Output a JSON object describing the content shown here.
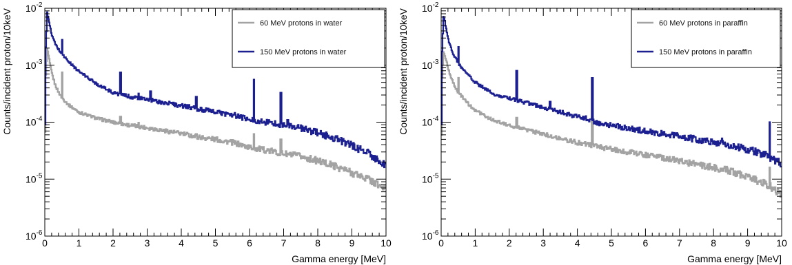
{
  "colors": {
    "low_energy": "#a3a3a3",
    "high_energy": "#1b1f8f",
    "frame": "#000000",
    "legend_border": "#000000"
  },
  "chart_data": [
    {
      "type": "line",
      "xlabel": "Gamma energy [MeV]",
      "ylabel": "Counts/incident proton/10keV",
      "xlim": [
        0,
        10
      ],
      "ylim": [
        1e-06,
        0.01
      ],
      "yscale": "log",
      "grid": false,
      "legend_position": "top-right",
      "x_ticks": [
        "0",
        "1",
        "2",
        "3",
        "4",
        "5",
        "6",
        "7",
        "8",
        "9",
        "10"
      ],
      "y_ticks": [
        {
          "base": "10",
          "exp": "-6",
          "value": 1e-06
        },
        {
          "base": "10",
          "exp": "-5",
          "value": 1e-05
        },
        {
          "base": "10",
          "exp": "-4",
          "value": 0.0001
        },
        {
          "base": "10",
          "exp": "-3",
          "value": 0.001
        },
        {
          "base": "10",
          "exp": "-2",
          "value": 0.01
        }
      ],
      "series": [
        {
          "name": "60 MeV protons in water",
          "color": "#a3a3a3",
          "x": [
            0.0,
            0.03,
            0.07,
            0.1,
            0.15,
            0.2,
            0.3,
            0.4,
            0.5,
            0.7,
            1.0,
            1.5,
            2.0,
            2.5,
            3.0,
            3.5,
            4.0,
            4.5,
            5.0,
            5.5,
            6.0,
            6.5,
            7.0,
            7.5,
            8.0,
            8.5,
            9.0,
            9.5,
            10.0
          ],
          "y": [
            2e-05,
            0.0007,
            0.0019,
            0.0016,
            0.00105,
            0.00075,
            0.00046,
            0.00034,
            0.00027,
            0.0002,
            0.00015,
            0.000118,
            0.0001,
            8.8e-05,
            8e-05,
            7.1e-05,
            6.3e-05,
            5.5e-05,
            5e-05,
            4.4e-05,
            3.6e-05,
            3.2e-05,
            2.8e-05,
            2.5e-05,
            2.1e-05,
            1.7e-05,
            1.3e-05,
            1e-05,
            6.5e-06
          ],
          "peaks": [
            {
              "x": 0.51,
              "y": 0.00075
            },
            {
              "x": 2.22,
              "y": 0.000125
            },
            {
              "x": 2.75,
              "y": 9.8e-05
            },
            {
              "x": 4.44,
              "y": 6.2e-05
            },
            {
              "x": 6.13,
              "y": 6.2e-05
            },
            {
              "x": 6.92,
              "y": 5e-05
            }
          ]
        },
        {
          "name": "150 MeV protons in water",
          "color": "#1b1f8f",
          "x": [
            0.0,
            0.03,
            0.07,
            0.1,
            0.15,
            0.2,
            0.3,
            0.4,
            0.5,
            0.7,
            1.0,
            1.5,
            2.0,
            2.5,
            3.0,
            3.5,
            4.0,
            4.5,
            5.0,
            5.5,
            6.0,
            6.5,
            7.0,
            7.5,
            8.0,
            8.5,
            9.0,
            9.5,
            10.0
          ],
          "y": [
            2e-05,
            0.002,
            0.0082,
            0.0072,
            0.0048,
            0.0035,
            0.0024,
            0.0019,
            0.0016,
            0.00115,
            0.00078,
            0.00048,
            0.00033,
            0.00028,
            0.00025,
            0.00022,
            0.000195,
            0.00017,
            0.00015,
            0.000135,
            0.00011,
            0.0001,
            9e-05,
            7.8e-05,
            6.5e-05,
            5.2e-05,
            3.9e-05,
            2.8e-05,
            1.7e-05
          ],
          "peaks": [
            {
              "x": 0.51,
              "y": 0.0028
            },
            {
              "x": 2.22,
              "y": 0.00075
            },
            {
              "x": 2.75,
              "y": 0.00032
            },
            {
              "x": 3.1,
              "y": 0.00035
            },
            {
              "x": 3.7,
              "y": 0.00022
            },
            {
              "x": 3.85,
              "y": 0.00021
            },
            {
              "x": 4.44,
              "y": 0.00028
            },
            {
              "x": 6.13,
              "y": 0.00056
            },
            {
              "x": 6.92,
              "y": 0.00033
            },
            {
              "x": 7.12,
              "y": 0.00011
            }
          ]
        }
      ]
    },
    {
      "type": "line",
      "xlabel": "Gamma energy [MeV]",
      "ylabel": "Counts/incident proton/10keV",
      "xlim": [
        0,
        10
      ],
      "ylim": [
        1e-06,
        0.01
      ],
      "yscale": "log",
      "grid": false,
      "legend_position": "top-right",
      "x_ticks": [
        "0",
        "1",
        "2",
        "3",
        "4",
        "5",
        "6",
        "7",
        "8",
        "9",
        "10"
      ],
      "y_ticks": [
        {
          "base": "10",
          "exp": "-6",
          "value": 1e-06
        },
        {
          "base": "10",
          "exp": "-5",
          "value": 1e-05
        },
        {
          "base": "10",
          "exp": "-4",
          "value": 0.0001
        },
        {
          "base": "10",
          "exp": "-3",
          "value": 0.001
        },
        {
          "base": "10",
          "exp": "-2",
          "value": 0.01
        }
      ],
      "series": [
        {
          "name": "60 MeV protons in paraffin",
          "color": "#a3a3a3",
          "x": [
            0.0,
            0.03,
            0.07,
            0.1,
            0.15,
            0.2,
            0.3,
            0.4,
            0.5,
            0.7,
            1.0,
            1.5,
            2.0,
            2.5,
            3.0,
            3.5,
            4.0,
            4.3,
            4.5,
            5.0,
            5.5,
            6.0,
            6.5,
            7.0,
            7.5,
            8.0,
            8.5,
            9.0,
            9.5,
            10.0
          ],
          "y": [
            2e-05,
            0.0006,
            0.0017,
            0.0015,
            0.0012,
            0.0009,
            0.00058,
            0.00042,
            0.00034,
            0.00024,
            0.00016,
            0.00011,
            8.8e-05,
            7.3e-05,
            6.2e-05,
            5.2e-05,
            4.4e-05,
            4.1e-05,
            3.8e-05,
            3.4e-05,
            3e-05,
            2.7e-05,
            2.4e-05,
            2.1e-05,
            1.8e-05,
            1.6e-05,
            1.4e-05,
            1.1e-05,
            8.5e-06,
            5.5e-06
          ],
          "peaks": [
            {
              "x": 0.51,
              "y": 0.0006
            },
            {
              "x": 2.22,
              "y": 0.00012
            },
            {
              "x": 3.2,
              "y": 5.5e-05
            },
            {
              "x": 4.44,
              "y": 0.00012
            },
            {
              "x": 9.65,
              "y": 1.6e-05
            }
          ]
        },
        {
          "name": "150 MeV protons in paraffin",
          "color": "#1b1f8f",
          "x": [
            0.0,
            0.03,
            0.07,
            0.1,
            0.15,
            0.2,
            0.3,
            0.4,
            0.5,
            0.7,
            1.0,
            1.5,
            2.0,
            2.5,
            3.0,
            3.5,
            4.0,
            4.3,
            4.5,
            5.0,
            5.5,
            6.0,
            6.5,
            7.0,
            7.5,
            8.0,
            8.5,
            9.0,
            9.5,
            10.0
          ],
          "y": [
            2e-05,
            0.0018,
            0.0072,
            0.0064,
            0.0042,
            0.003,
            0.0019,
            0.0014,
            0.0011,
            0.00078,
            0.0005,
            0.00032,
            0.00026,
            0.00022,
            0.00018,
            0.00015,
            0.000125,
            0.000115,
            0.0001,
            8.8e-05,
            7.8e-05,
            7e-05,
            6.3e-05,
            5.6e-05,
            5e-05,
            4.5e-05,
            4e-05,
            3.3e-05,
            2.7e-05,
            1.9e-05
          ],
          "peaks": [
            {
              "x": 0.51,
              "y": 0.0021
            },
            {
              "x": 2.22,
              "y": 0.0008
            },
            {
              "x": 3.2,
              "y": 0.00023
            },
            {
              "x": 4.44,
              "y": 0.0006
            },
            {
              "x": 8.25,
              "y": 5.2e-05
            },
            {
              "x": 9.65,
              "y": 0.0001
            }
          ]
        }
      ]
    }
  ]
}
